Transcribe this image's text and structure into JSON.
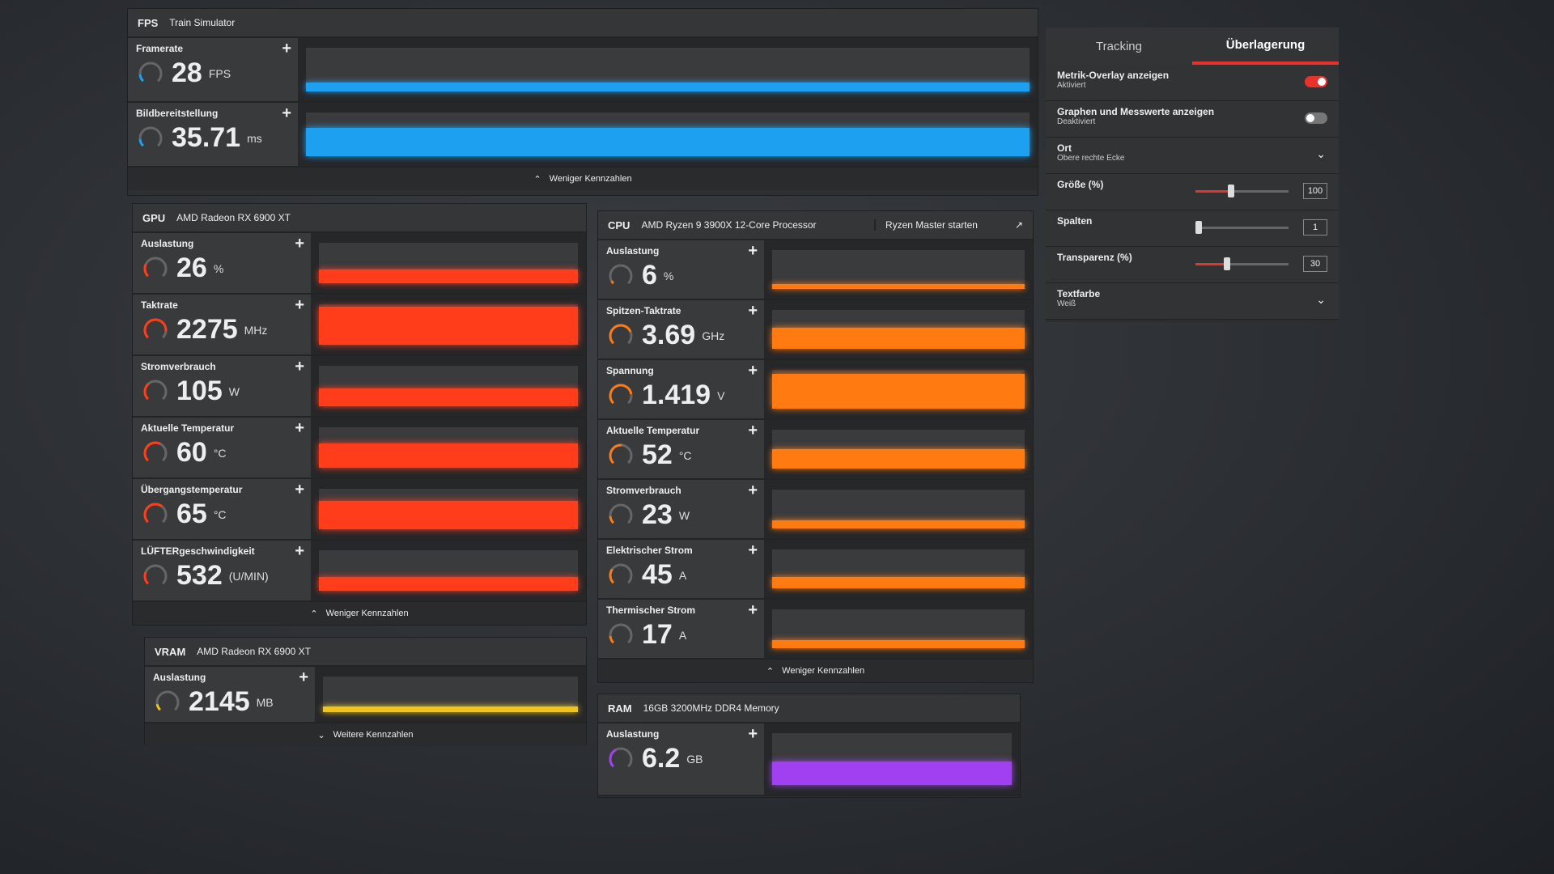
{
  "fps": {
    "tag": "FPS",
    "title": "Train Simulator",
    "footer": "Weniger Kennzahlen",
    "color": "#1ea0f0",
    "metrics": [
      {
        "label": "Framerate",
        "value": "28",
        "unit": "FPS",
        "gauge": 0.15,
        "level": 0.2
      },
      {
        "label": "Bildbereitstellung",
        "value": "35.71",
        "unit": "ms",
        "gauge": 0.15,
        "level": 0.65
      }
    ]
  },
  "gpu": {
    "tag": "GPU",
    "title": "AMD Radeon RX 6900 XT",
    "footer": "Weniger Kennzahlen",
    "color": "#ff3d1a",
    "metrics": [
      {
        "label": "Auslastung",
        "value": "26",
        "unit": "%",
        "gauge": 0.26,
        "level": 0.35
      },
      {
        "label": "Taktrate",
        "value": "2275",
        "unit": "MHz",
        "gauge": 0.85,
        "level": 0.95
      },
      {
        "label": "Stromverbrauch",
        "value": "105",
        "unit": "W",
        "gauge": 0.35,
        "level": 0.45
      },
      {
        "label": "Aktuelle Temperatur",
        "value": "60",
        "unit": "°C",
        "gauge": 0.6,
        "level": 0.6
      },
      {
        "label": "Übergangstemperatur",
        "value": "65",
        "unit": "°C",
        "gauge": 0.65,
        "level": 0.7
      },
      {
        "label": "LÜFTERgeschwindigkeit",
        "value": "532",
        "unit": "(U/MIN)",
        "gauge": 0.25,
        "level": 0.35
      }
    ]
  },
  "vram": {
    "tag": "VRAM",
    "title": "AMD Radeon RX 6900 XT",
    "footer": "Weitere Kennzahlen",
    "color": "#f0c419",
    "metrics": [
      {
        "label": "Auslastung",
        "value": "2145",
        "unit": "MB",
        "gauge": 0.13,
        "level": 0.15
      }
    ]
  },
  "cpu": {
    "tag": "CPU",
    "title": "AMD Ryzen 9 3900X 12-Core Processor",
    "button": "Ryzen Master starten",
    "footer": "Weniger Kennzahlen",
    "color": "#ff7a10",
    "metrics": [
      {
        "label": "Auslastung",
        "value": "6",
        "unit": "%",
        "gauge": 0.06,
        "level": 0.12
      },
      {
        "label": "Spitzen-Taktrate",
        "value": "3.69",
        "unit": "GHz",
        "gauge": 0.75,
        "level": 0.55
      },
      {
        "label": "Spannung",
        "value": "1.419",
        "unit": "V",
        "gauge": 0.8,
        "level": 0.9
      },
      {
        "label": "Aktuelle Temperatur",
        "value": "52",
        "unit": "°C",
        "gauge": 0.52,
        "level": 0.5
      },
      {
        "label": "Stromverbrauch",
        "value": "23",
        "unit": "W",
        "gauge": 0.15,
        "level": 0.2
      },
      {
        "label": "Elektrischer Strom",
        "value": "45",
        "unit": "A",
        "gauge": 0.3,
        "level": 0.3
      },
      {
        "label": "Thermischer Strom",
        "value": "17",
        "unit": "A",
        "gauge": 0.15,
        "level": 0.2
      }
    ]
  },
  "ram": {
    "tag": "RAM",
    "title": "16GB 3200MHz DDR4 Memory",
    "color": "#a040f0",
    "metrics": [
      {
        "label": "Auslastung",
        "value": "6.2",
        "unit": "GB",
        "gauge": 0.39,
        "level": 0.45
      }
    ]
  },
  "settings": {
    "tabs": [
      "Tracking",
      "Überlagerung"
    ],
    "active_tab": 1,
    "overlay": {
      "label": "Metrik-Overlay anzeigen",
      "state": "Aktiviert",
      "on": true
    },
    "graphs": {
      "label": "Graphen und Messwerte anzeigen",
      "state": "Deaktiviert",
      "on": false
    },
    "location": {
      "label": "Ort",
      "value": "Obere rechte Ecke"
    },
    "size": {
      "label": "Größe (%)",
      "value": "100",
      "level": 0.35
    },
    "columns": {
      "label": "Spalten",
      "value": "1",
      "level": 0.0
    },
    "transparency": {
      "label": "Transparenz (%)",
      "value": "30",
      "level": 0.3
    },
    "textcolor": {
      "label": "Textfarbe",
      "value": "Weiß"
    }
  }
}
